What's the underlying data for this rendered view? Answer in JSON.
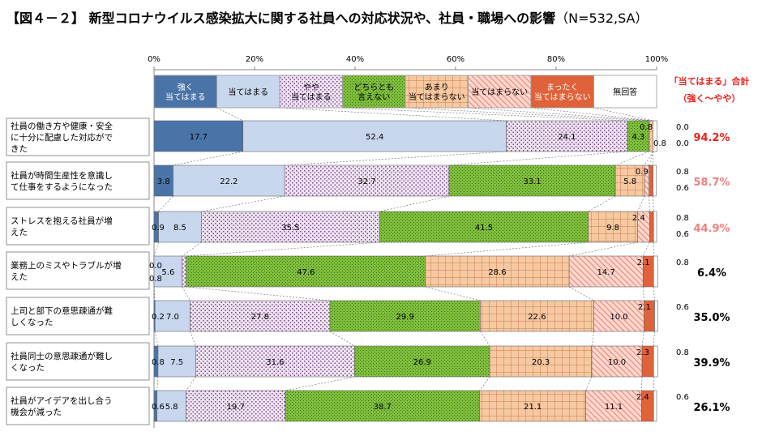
{
  "title": {
    "main": "【図４－２】 新型コロナウイルス感染拡大に関する社員への対応状況や、社員・職場への影響",
    "sub": "（N=532,SA）"
  },
  "chart_data": {
    "type": "bar",
    "orientation": "horizontal",
    "stacked": "percent",
    "xlim": [
      0,
      100
    ],
    "x_ticks": [
      "0%",
      "20%",
      "40%",
      "60%",
      "80%",
      "100%"
    ],
    "legend_placement": "top",
    "series": [
      {
        "name": "強く\n当てはまる",
        "color": "#4a74a8",
        "pattern": "solid",
        "values": [
          17.7,
          3.8,
          0.9,
          0.0,
          0.2,
          0.8,
          0.6
        ]
      },
      {
        "name": "当てはまる",
        "color": "#c9d7ee",
        "pattern": "solid",
        "values": [
          52.4,
          22.2,
          8.5,
          5.6,
          7.0,
          7.5,
          5.8
        ]
      },
      {
        "name": "やや\n当てはまる",
        "color": "#efe4f2",
        "pattern": "purple-dots",
        "values": [
          24.1,
          32.7,
          35.5,
          0.8,
          27.8,
          31.6,
          19.7
        ]
      },
      {
        "name": "どちらとも\n言えない",
        "color": "#7fbe3c",
        "pattern": "green-dots",
        "values": [
          4.3,
          33.1,
          41.5,
          47.6,
          29.9,
          26.9,
          38.7
        ]
      },
      {
        "name": "あまり\n当てはまらない",
        "color": "#f6c9a2",
        "pattern": "grid",
        "values": [
          0.8,
          5.8,
          9.8,
          28.6,
          22.6,
          20.3,
          21.1
        ]
      },
      {
        "name": "当てはまらない",
        "color": "#f6bcb5",
        "pattern": "diag",
        "values": [
          0.0,
          0.9,
          2.4,
          14.7,
          10.0,
          10.0,
          11.1
        ]
      },
      {
        "name": "まったく\n当てはまらない",
        "color": "#e0623a",
        "pattern": "solid",
        "values": [
          0.0,
          0.8,
          0.8,
          2.1,
          2.1,
          2.3,
          2.4
        ]
      },
      {
        "name": "無回答",
        "color": "#ffffff",
        "pattern": "solid",
        "values": [
          0.8,
          0.6,
          0.6,
          0.8,
          0.6,
          0.8,
          0.6
        ]
      }
    ],
    "categories": [
      "社員の働き方や健康・安全に十分に配慮した対応ができた",
      "社員が時間生産性を意識して仕事をするようになった",
      "ストレスを抱える社員が増えた",
      "業務上のミスやトラブルが増えた",
      "上司と部下の意思疎通が難しくなった",
      "社員同士の意思疎通が難しくなった",
      "社員がアイデアを出し合う機会が減った"
    ],
    "category_lines": [
      [
        "社員の働き方や健康・安全",
        "に十分に配慮した対応がで",
        "きた"
      ],
      [
        "社員が時間生産性を意識し",
        "て仕事をするようになった"
      ],
      [
        "ストレスを抱える社員が増",
        "えた"
      ],
      [
        "業務上のミスやトラブルが増",
        "えた"
      ],
      [
        "上司と部下の意思疎通が難",
        "しくなった"
      ],
      [
        "社員同士の意思疎通が難し",
        "くなった"
      ],
      [
        "社員がアイデアを出し合う",
        "機会が減った"
      ]
    ],
    "totals_header": [
      "「当てはまる」合計",
      "（強く～やや）"
    ],
    "totals": [
      {
        "value": "94.2%",
        "color": "#e8221c"
      },
      {
        "value": "58.7%",
        "color": "#f08080"
      },
      {
        "value": "44.9%",
        "color": "#f08080"
      },
      {
        "value": "6.4%",
        "color": "#000000"
      },
      {
        "value": "35.0%",
        "color": "#000000"
      },
      {
        "value": "39.9%",
        "color": "#000000"
      },
      {
        "value": "26.1%",
        "color": "#000000"
      }
    ]
  }
}
